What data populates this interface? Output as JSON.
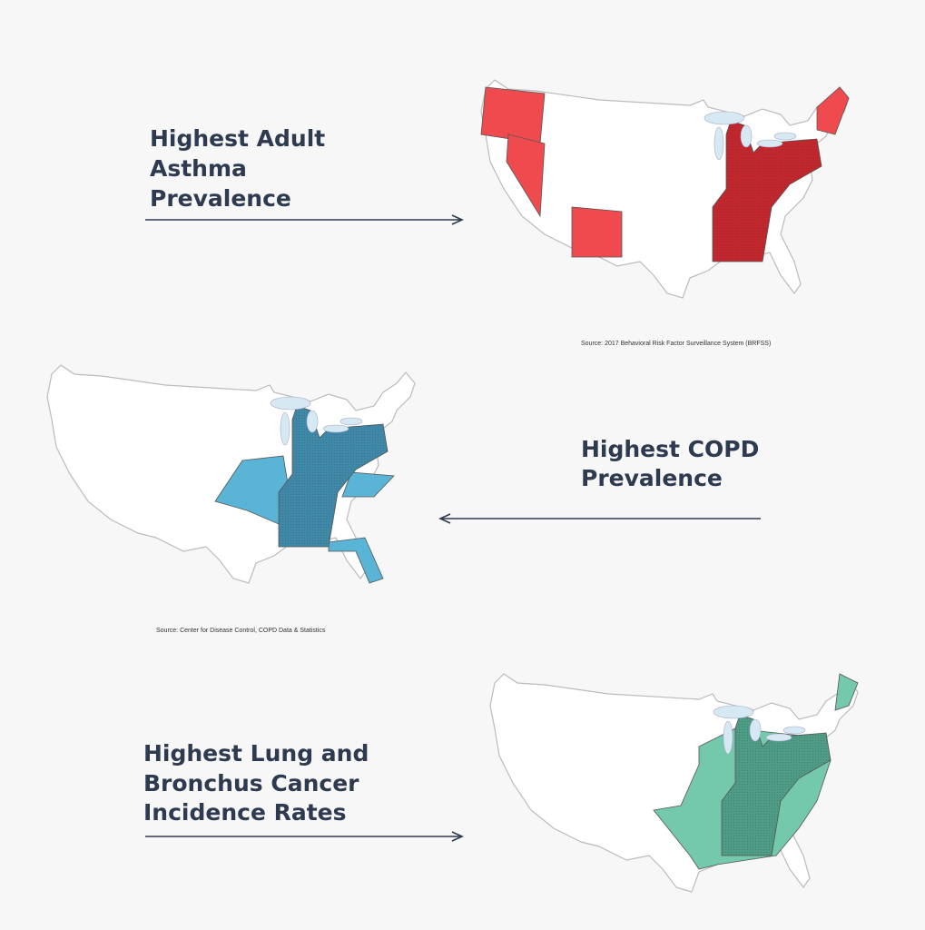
{
  "panels": [
    {
      "title_lines": [
        "Highest Adult",
        "Asthma",
        "Prevalence"
      ],
      "source": "Source: 2017 Behavioral Risk Factor Surveillance System (BRFSS)"
    },
    {
      "title_lines": [
        "Highest COPD",
        "Prevalence"
      ],
      "source": "Source: Center for Disease Control, COPD Data & Statistics"
    },
    {
      "title_lines": [
        "Highest Lung and",
        "Bronchus Cancer",
        "Incidence Rates"
      ]
    }
  ]
}
